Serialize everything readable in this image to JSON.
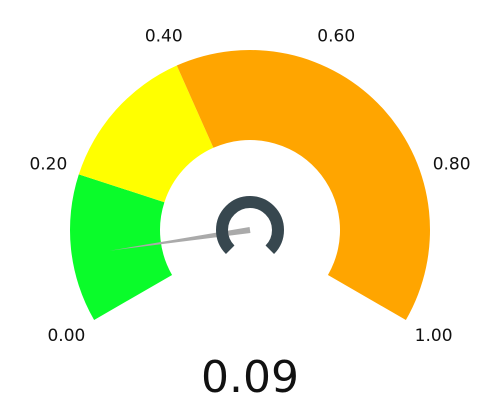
{
  "chart_data": {
    "type": "gauge",
    "value": 0.09,
    "ylim": [
      0,
      1
    ],
    "yticks": [
      {
        "value": 0,
        "label": "0.00"
      },
      {
        "value": 0.2,
        "label": "0.20"
      },
      {
        "value": 0.4,
        "label": "0.40"
      },
      {
        "value": 0.6,
        "label": "0.60"
      },
      {
        "value": 0.8,
        "label": "0.80"
      },
      {
        "value": 1,
        "label": "1.00"
      }
    ],
    "bands": [
      {
        "from": 0,
        "to": 0.2,
        "color": "#0afc2a"
      },
      {
        "from": 0.2,
        "to": 0.4,
        "color": "#ffff00"
      },
      {
        "from": 0.4,
        "to": 1,
        "color": "#ffa500"
      }
    ],
    "needle_color": "#aaaaaa"
  }
}
